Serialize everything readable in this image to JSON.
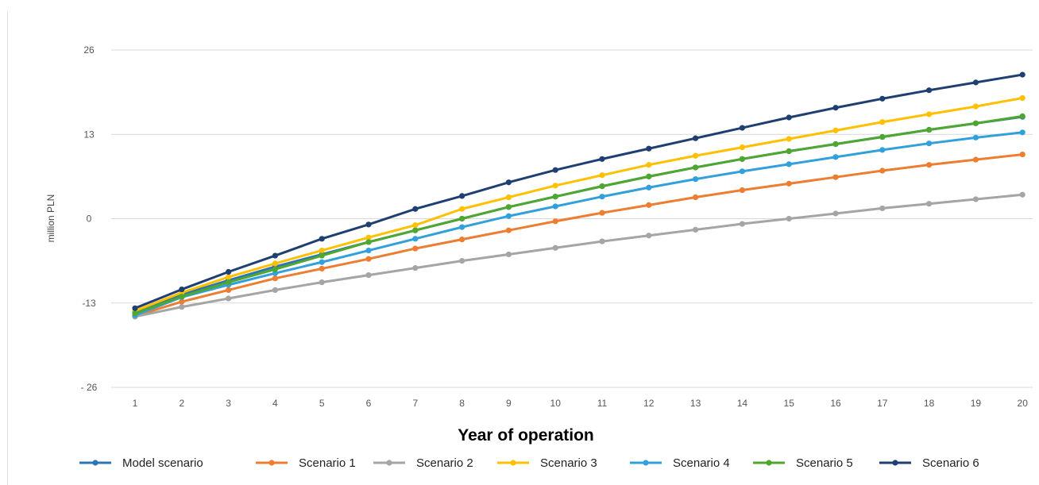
{
  "chart_data": {
    "type": "line",
    "xlabel": "Year of operation",
    "ylabel": "million PLN",
    "ylim": [
      -26,
      26
    ],
    "y_ticks": [
      26,
      13,
      0,
      -13,
      -26
    ],
    "y_tick_labels": [
      "26",
      "13",
      "0",
      "-13",
      "- 26"
    ],
    "categories": [
      1,
      2,
      3,
      4,
      5,
      6,
      7,
      8,
      9,
      10,
      11,
      12,
      13,
      14,
      15,
      16,
      17,
      18,
      19,
      20
    ],
    "grid": "horizontal",
    "legend_position": "bottom",
    "series": [
      {
        "name": "Model scenario",
        "color": "#2E75B6",
        "values": [
          -14.4,
          -11.7,
          -9.5,
          -7.4,
          -5.5,
          -3.6,
          -1.8,
          0.0,
          1.8,
          3.4,
          5.0,
          6.5,
          7.9,
          9.2,
          10.4,
          11.5,
          12.6,
          13.7,
          14.7,
          15.7
        ]
      },
      {
        "name": "Scenario 1",
        "color": "#ED7D31",
        "values": [
          -15.0,
          -12.8,
          -11.0,
          -9.2,
          -7.7,
          -6.2,
          -4.6,
          -3.2,
          -1.8,
          -0.4,
          0.9,
          2.1,
          3.3,
          4.4,
          5.4,
          6.4,
          7.4,
          8.3,
          9.1,
          9.9
        ]
      },
      {
        "name": "Scenario 2",
        "color": "#A5A5A5",
        "values": [
          -15.1,
          -13.6,
          -12.3,
          -11.0,
          -9.8,
          -8.7,
          -7.6,
          -6.5,
          -5.5,
          -4.5,
          -3.5,
          -2.6,
          -1.7,
          -0.8,
          0.0,
          0.8,
          1.6,
          2.3,
          3.0,
          3.7
        ]
      },
      {
        "name": "Scenario 3",
        "color": "#FFC000",
        "values": [
          -14.2,
          -11.4,
          -9.0,
          -6.9,
          -4.9,
          -2.9,
          -1.0,
          1.5,
          3.3,
          5.1,
          6.7,
          8.3,
          9.7,
          11.0,
          12.3,
          13.6,
          14.9,
          16.1,
          17.3,
          18.6
        ]
      },
      {
        "name": "Scenario 4",
        "color": "#32A1DB",
        "values": [
          -14.9,
          -12.1,
          -10.2,
          -8.4,
          -6.7,
          -4.9,
          -3.1,
          -1.3,
          0.4,
          1.9,
          3.4,
          4.8,
          6.1,
          7.3,
          8.4,
          9.5,
          10.6,
          11.6,
          12.5,
          13.3
        ]
      },
      {
        "name": "Scenario 5",
        "color": "#4EA72E",
        "values": [
          -14.6,
          -12.0,
          -9.8,
          -7.8,
          -5.7,
          -3.6,
          -1.8,
          0.0,
          1.8,
          3.4,
          5.0,
          6.5,
          7.9,
          9.2,
          10.4,
          11.5,
          12.6,
          13.7,
          14.7,
          15.8
        ]
      },
      {
        "name": "Scenario 6",
        "color": "#1F3E72",
        "values": [
          -13.8,
          -10.9,
          -8.2,
          -5.7,
          -3.1,
          -0.9,
          1.5,
          3.5,
          5.6,
          7.5,
          9.2,
          10.8,
          12.4,
          14.0,
          15.6,
          17.1,
          18.5,
          19.8,
          21.0,
          22.2
        ]
      }
    ]
  }
}
